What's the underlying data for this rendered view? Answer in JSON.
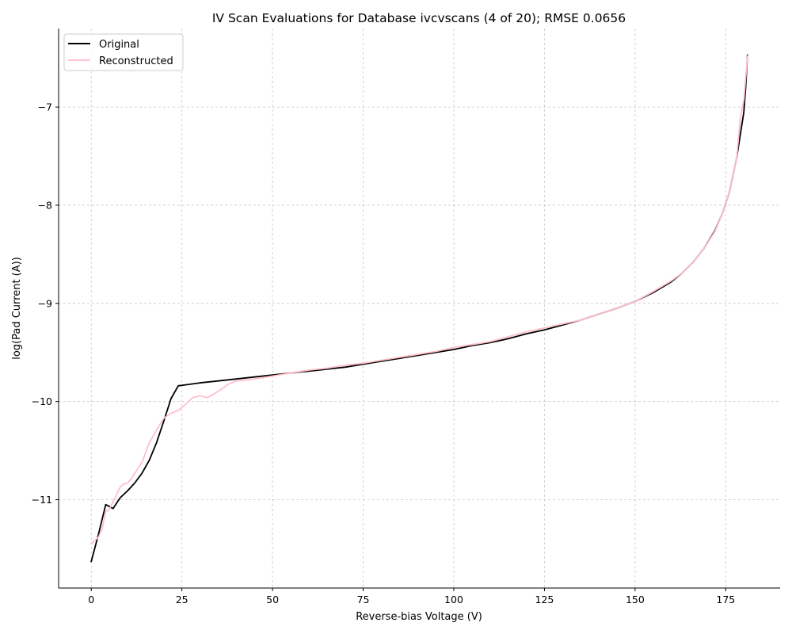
{
  "chart_data": {
    "type": "line",
    "title": "IV Scan Evaluations for Database ivcvscans (4 of 20); RMSE 0.0656",
    "xlabel": "Reverse-bias Voltage (V)",
    "ylabel": "log(Pad Current (A))",
    "xlim": [
      -9,
      190
    ],
    "ylim": [
      -11.9,
      -6.2
    ],
    "xticks": [
      0,
      25,
      50,
      75,
      100,
      125,
      150,
      175
    ],
    "yticks": [
      -11,
      -10,
      -9,
      -8,
      -7
    ],
    "ytick_labels": [
      "−11",
      "−10",
      "−9",
      "−8",
      "−7"
    ],
    "grid": true,
    "legend_position": "top-left",
    "series": [
      {
        "name": "Original",
        "color": "#000000",
        "x": [
          0,
          2,
          4,
          6,
          8,
          10,
          12,
          14,
          16,
          18,
          20,
          22,
          24,
          26,
          28,
          30,
          35,
          40,
          45,
          50,
          55,
          60,
          65,
          70,
          75,
          80,
          85,
          90,
          95,
          100,
          105,
          110,
          115,
          120,
          125,
          130,
          135,
          140,
          145,
          150,
          155,
          160,
          163,
          166,
          169,
          172,
          174,
          176,
          178,
          180,
          180.5,
          181
        ],
        "y": [
          -11.63,
          -11.35,
          -11.05,
          -11.09,
          -10.98,
          -10.91,
          -10.83,
          -10.73,
          -10.6,
          -10.42,
          -10.2,
          -9.97,
          -9.84,
          -9.83,
          -9.82,
          -9.81,
          -9.79,
          -9.77,
          -9.75,
          -9.73,
          -9.71,
          -9.69,
          -9.67,
          -9.65,
          -9.62,
          -9.59,
          -9.56,
          -9.53,
          -9.5,
          -9.47,
          -9.43,
          -9.4,
          -9.36,
          -9.31,
          -9.27,
          -9.22,
          -9.17,
          -9.11,
          -9.05,
          -8.98,
          -8.89,
          -8.78,
          -8.69,
          -8.58,
          -8.44,
          -8.26,
          -8.09,
          -7.87,
          -7.52,
          -7.05,
          -6.8,
          -6.47
        ]
      },
      {
        "name": "Reconstructed",
        "color": "#ffc0cb",
        "x": [
          0,
          2,
          3,
          4,
          5,
          6,
          7,
          8,
          9,
          10,
          11,
          12,
          14,
          16,
          18,
          20,
          22,
          24,
          26,
          28,
          30,
          32,
          34,
          36,
          38,
          40,
          45,
          50,
          55,
          60,
          65,
          70,
          75,
          80,
          85,
          90,
          95,
          100,
          105,
          110,
          115,
          120,
          125,
          130,
          135,
          140,
          145,
          150,
          155,
          160,
          163,
          166,
          169,
          172,
          174,
          176,
          178,
          179,
          180,
          181
        ],
        "y": [
          -11.45,
          -11.38,
          -11.3,
          -11.12,
          -11.1,
          -11.02,
          -10.95,
          -10.87,
          -10.84,
          -10.83,
          -10.79,
          -10.73,
          -10.62,
          -10.42,
          -10.29,
          -10.17,
          -10.12,
          -10.09,
          -10.03,
          -9.96,
          -9.94,
          -9.96,
          -9.92,
          -9.87,
          -9.82,
          -9.79,
          -9.77,
          -9.74,
          -9.71,
          -9.68,
          -9.66,
          -9.63,
          -9.61,
          -9.58,
          -9.55,
          -9.52,
          -9.49,
          -9.45,
          -9.42,
          -9.39,
          -9.34,
          -9.29,
          -9.25,
          -9.21,
          -9.17,
          -9.11,
          -9.05,
          -8.98,
          -8.88,
          -8.77,
          -8.69,
          -8.58,
          -8.44,
          -8.27,
          -8.09,
          -7.87,
          -7.52,
          -7.12,
          -6.93,
          -6.48
        ]
      }
    ]
  }
}
